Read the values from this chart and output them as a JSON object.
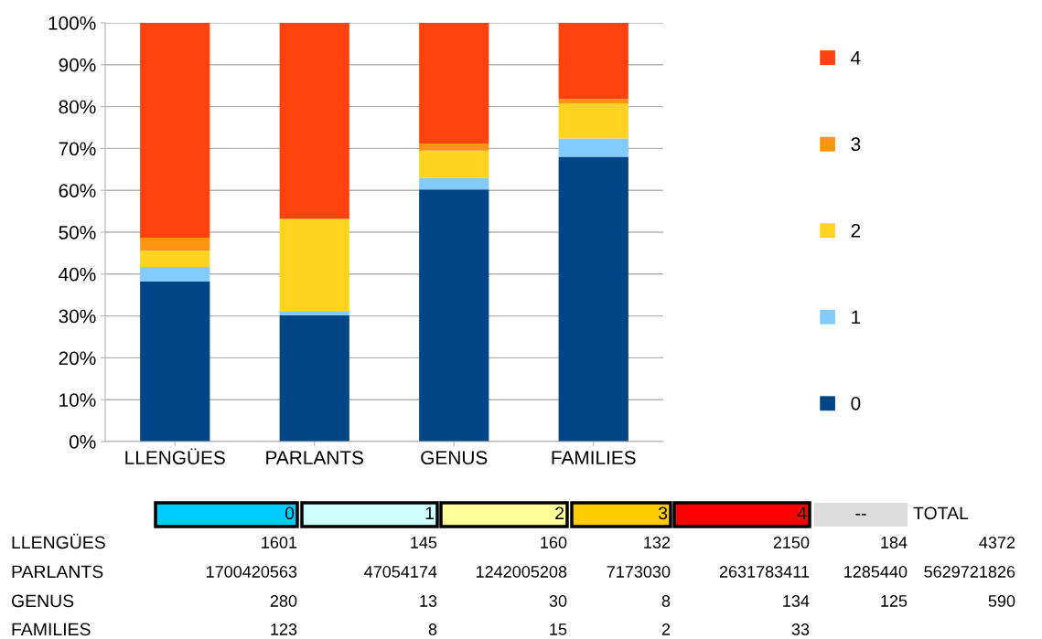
{
  "chart_data": [
    {
      "type": "bar",
      "stacked": true,
      "categories": [
        "LLENGÜES",
        "PARLANTS",
        "GENUS",
        "FAMILIES"
      ],
      "series": [
        {
          "name": "0",
          "color": "#004586",
          "values": [
            38.2,
            30.2,
            60.2,
            68.0
          ]
        },
        {
          "name": "1",
          "color": "#83caff",
          "values": [
            3.5,
            0.8,
            2.8,
            4.4
          ]
        },
        {
          "name": "2",
          "color": "#ffd320",
          "values": [
            3.8,
            22.1,
            6.5,
            8.3
          ]
        },
        {
          "name": "3",
          "color": "#ff950e",
          "values": [
            3.2,
            0.1,
            1.7,
            1.1
          ]
        },
        {
          "name": "4",
          "color": "#ff420e",
          "values": [
            51.3,
            46.8,
            28.8,
            18.2
          ]
        }
      ],
      "ylim": [
        0,
        100
      ],
      "yticks": [
        {
          "value": 0,
          "label": "0%"
        },
        {
          "value": 10,
          "label": "10%"
        },
        {
          "value": 20,
          "label": "20%"
        },
        {
          "value": 30,
          "label": "30%"
        },
        {
          "value": 40,
          "label": "40%"
        },
        {
          "value": 50,
          "label": "50%"
        },
        {
          "value": 60,
          "label": "60%"
        },
        {
          "value": 70,
          "label": "70%"
        },
        {
          "value": 80,
          "label": "80%"
        },
        {
          "value": 90,
          "label": "90%"
        },
        {
          "value": 100,
          "label": "100%"
        }
      ],
      "grid": "y",
      "legend": "right"
    },
    {
      "type": "heatmap",
      "data_labels": true,
      "categories": [
        "0",
        "1",
        "2",
        "3",
        "4",
        "--",
        "TOTAL"
      ],
      "colors": [
        "#00ccff",
        "#ccffff",
        "#ffff99",
        "#ffcc00",
        "#ff0000",
        "#dddddd",
        null
      ],
      "y_categories": [
        "LLENGÜES",
        "PARLANTS",
        "GENUS",
        "FAMILIES"
      ],
      "cells": [
        [
          1601,
          145,
          160,
          132,
          2150,
          184,
          4372
        ],
        [
          1700420563,
          47054174,
          1242005208,
          7173030,
          2631783411,
          1285440,
          5629721826
        ],
        [
          280,
          13,
          30,
          8,
          134,
          125,
          590
        ],
        [
          123,
          8,
          15,
          2,
          33,
          null,
          null
        ]
      ]
    }
  ]
}
